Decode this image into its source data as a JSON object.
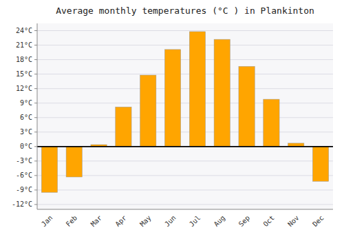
{
  "chart_data": {
    "type": "bar",
    "title": "Average monthly temperatures (°C ) in Plankinton",
    "categories": [
      "Jan",
      "Feb",
      "Mar",
      "Apr",
      "May",
      "Jun",
      "Jul",
      "Aug",
      "Sep",
      "Oct",
      "Nov",
      "Dec"
    ],
    "values": [
      -9.5,
      -6.3,
      0.4,
      8.2,
      14.8,
      20.1,
      23.8,
      22.2,
      16.6,
      9.8,
      0.7,
      -7.2
    ],
    "color": "#FFA500",
    "ylim": [
      -13,
      25.5
    ],
    "yticks": [
      {
        "value": -12,
        "label": "-12°C"
      },
      {
        "value": -9,
        "label": "-9°C"
      },
      {
        "value": -6,
        "label": "-6°C"
      },
      {
        "value": -3,
        "label": "-3°C"
      },
      {
        "value": 0,
        "label": "0°C"
      },
      {
        "value": 3,
        "label": "3°C"
      },
      {
        "value": 6,
        "label": "6°C"
      },
      {
        "value": 9,
        "label": "9°C"
      },
      {
        "value": 12,
        "label": "12°C"
      },
      {
        "value": 15,
        "label": "15°C"
      },
      {
        "value": 18,
        "label": "18°C"
      },
      {
        "value": 21,
        "label": "21°C"
      },
      {
        "value": 24,
        "label": "24°C"
      }
    ],
    "grid": true
  }
}
